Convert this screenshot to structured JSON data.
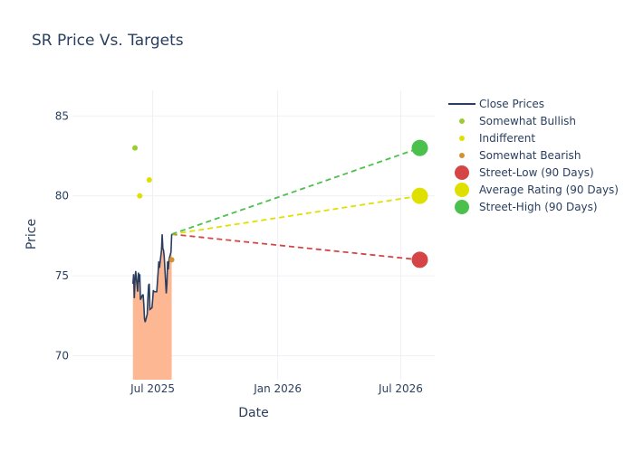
{
  "chart_data": {
    "type": "line",
    "title": "SR Price Vs. Targets",
    "xlabel": "Date",
    "ylabel": "Price",
    "x_ticks": [
      {
        "date": "2025-07-01",
        "label": "Jul 2025"
      },
      {
        "date": "2026-01-01",
        "label": "Jan 2026"
      },
      {
        "date": "2026-07-01",
        "label": "Jul 2026"
      }
    ],
    "y_ticks": [
      70,
      75,
      80,
      85
    ],
    "xlim": [
      "2025-03-05",
      "2026-08-20"
    ],
    "ylim": [
      68.5,
      86.6
    ],
    "grid": true,
    "legend_position": "top-right",
    "colors": {
      "close": "#2a3f5f",
      "fill": "#fdb793",
      "bullish": "#9acd32",
      "indifferent": "#e0e000",
      "bearish": "#d4912e",
      "street_low": "#d64545",
      "average": "#e0e000",
      "street_high": "#4cc04c"
    },
    "close_prices": {
      "name": "Close Prices",
      "points": [
        [
          "2025-06-02",
          74.5
        ],
        [
          "2025-06-03",
          75.1
        ],
        [
          "2025-06-04",
          73.6
        ],
        [
          "2025-06-05",
          74.7
        ],
        [
          "2025-06-06",
          75.3
        ],
        [
          "2025-06-09",
          74.0
        ],
        [
          "2025-06-10",
          75.2
        ],
        [
          "2025-06-11",
          74.6
        ],
        [
          "2025-06-12",
          75.1
        ],
        [
          "2025-06-13",
          73.5
        ],
        [
          "2025-06-16",
          73.8
        ],
        [
          "2025-06-17",
          73.8
        ],
        [
          "2025-06-18",
          73.2
        ],
        [
          "2025-06-19",
          72.3
        ],
        [
          "2025-06-20",
          72.1
        ],
        [
          "2025-06-23",
          72.6
        ],
        [
          "2025-06-24",
          73.6
        ],
        [
          "2025-06-25",
          74.4
        ],
        [
          "2025-06-26",
          74.5
        ],
        [
          "2025-06-27",
          72.9
        ],
        [
          "2025-06-30",
          73.0
        ],
        [
          "2025-07-01",
          73.5
        ],
        [
          "2025-07-02",
          74.1
        ],
        [
          "2025-07-03",
          74.0
        ],
        [
          "2025-07-07",
          74.0
        ],
        [
          "2025-07-08",
          74.6
        ],
        [
          "2025-07-09",
          75.2
        ],
        [
          "2025-07-10",
          75.9
        ],
        [
          "2025-07-11",
          75.5
        ],
        [
          "2025-07-14",
          76.6
        ],
        [
          "2025-07-15",
          77.6
        ],
        [
          "2025-07-16",
          76.7
        ],
        [
          "2025-07-17",
          76.6
        ],
        [
          "2025-07-18",
          76.2
        ],
        [
          "2025-07-21",
          73.9
        ],
        [
          "2025-07-22",
          74.5
        ],
        [
          "2025-07-23",
          75.9
        ],
        [
          "2025-07-24",
          75.4
        ],
        [
          "2025-07-25",
          76.0
        ],
        [
          "2025-07-28",
          76.5
        ],
        [
          "2025-07-29",
          77.6
        ]
      ]
    },
    "ratings": [
      {
        "name": "Somewhat Bullish",
        "points": [
          [
            "2025-06-05",
            83.0
          ]
        ]
      },
      {
        "name": "Indifferent",
        "points": [
          [
            "2025-06-12",
            80.0
          ],
          [
            "2025-06-26",
            81.0
          ]
        ]
      },
      {
        "name": "Somewhat Bearish",
        "points": [
          [
            "2025-07-29",
            76.0
          ]
        ]
      }
    ],
    "targets": {
      "start": [
        "2025-07-29",
        77.6
      ],
      "end_date": "2026-07-29",
      "series": [
        {
          "name": "Street-Low (90 Days)",
          "value": 76.0
        },
        {
          "name": "Average Rating (90 Days)",
          "value": 80.0
        },
        {
          "name": "Street-High (90 Days)",
          "value": 83.0
        }
      ]
    },
    "legend": [
      "Close Prices",
      "Somewhat Bullish",
      "Indifferent",
      "Somewhat Bearish",
      "Street-Low (90 Days)",
      "Average Rating (90 Days)",
      "Street-High (90 Days)"
    ]
  }
}
